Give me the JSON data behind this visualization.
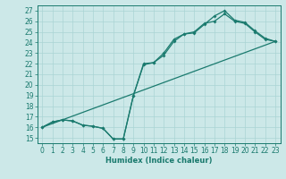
{
  "xlabel": "Humidex (Indice chaleur)",
  "bg_color": "#cce8e8",
  "grid_color": "#aad4d4",
  "line_color": "#1a7a6e",
  "xlim": [
    -0.5,
    23.5
  ],
  "ylim": [
    14.5,
    27.5
  ],
  "xticks": [
    0,
    1,
    2,
    3,
    4,
    5,
    6,
    7,
    8,
    9,
    10,
    11,
    12,
    13,
    14,
    15,
    16,
    17,
    18,
    19,
    20,
    21,
    22,
    23
  ],
  "yticks": [
    15,
    16,
    17,
    18,
    19,
    20,
    21,
    22,
    23,
    24,
    25,
    26,
    27
  ],
  "line1_x": [
    0,
    1,
    2,
    3,
    4,
    5,
    6,
    7,
    8,
    9,
    10,
    11,
    12,
    13,
    14,
    15,
    16,
    17,
    18,
    19,
    20,
    21,
    22,
    23
  ],
  "line1_y": [
    16.0,
    16.5,
    16.7,
    16.6,
    16.2,
    16.1,
    15.9,
    14.9,
    14.9,
    19.0,
    21.9,
    22.1,
    23.0,
    24.3,
    24.8,
    25.0,
    25.8,
    26.0,
    26.7,
    26.0,
    25.8,
    25.0,
    24.3,
    24.1
  ],
  "line2_x": [
    0,
    1,
    2,
    3,
    4,
    5,
    6,
    7,
    8,
    9,
    10,
    11,
    12,
    13,
    14,
    15,
    16,
    17,
    18,
    19,
    20,
    21,
    22,
    23
  ],
  "line2_y": [
    16.0,
    16.5,
    16.7,
    16.6,
    16.2,
    16.1,
    15.9,
    14.9,
    14.9,
    19.0,
    22.0,
    22.1,
    22.8,
    24.1,
    24.8,
    24.9,
    25.7,
    26.5,
    27.0,
    26.1,
    25.9,
    25.1,
    24.4,
    24.1
  ],
  "line3_x": [
    0,
    23
  ],
  "line3_y": [
    16.0,
    24.1
  ],
  "lw": 0.9,
  "ms": 2.0,
  "tick_fontsize": 5.5,
  "xlabel_fontsize": 6.0
}
